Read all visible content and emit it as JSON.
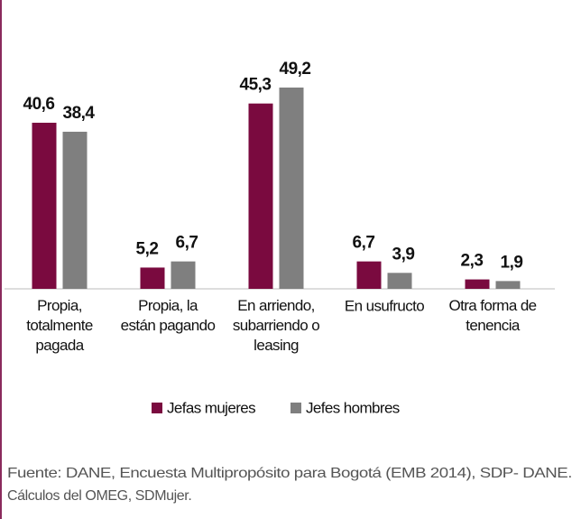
{
  "chart_data": {
    "type": "bar",
    "categories": [
      "Propia,\ntotalmente\npagada",
      "Propia, la\nestán pagando",
      "En arriendo,\nsubarriendo o\nleasing",
      "En usufructo",
      "Otra forma de\ntenencia"
    ],
    "series": [
      {
        "name": "Jefas mujeres",
        "color": "#7a0a3f",
        "values": [
          40.6,
          5.2,
          45.3,
          6.7,
          2.3
        ],
        "value_labels": [
          "40,6",
          "5,2",
          "45,3",
          "6,7",
          "2,3"
        ]
      },
      {
        "name": "Jefes hombres",
        "color": "#7f7f7f",
        "values": [
          38.4,
          6.7,
          49.2,
          3.9,
          1.9
        ],
        "value_labels": [
          "38,4",
          "6,7",
          "49,2",
          "3,9",
          "1,9"
        ]
      }
    ],
    "source": [
      "Fuente: DANE, Encuesta Multipropósito para Bogotá (EMB 2014), SDP- DANE.",
      "Cálculos del OMEG, SDMujer."
    ]
  }
}
